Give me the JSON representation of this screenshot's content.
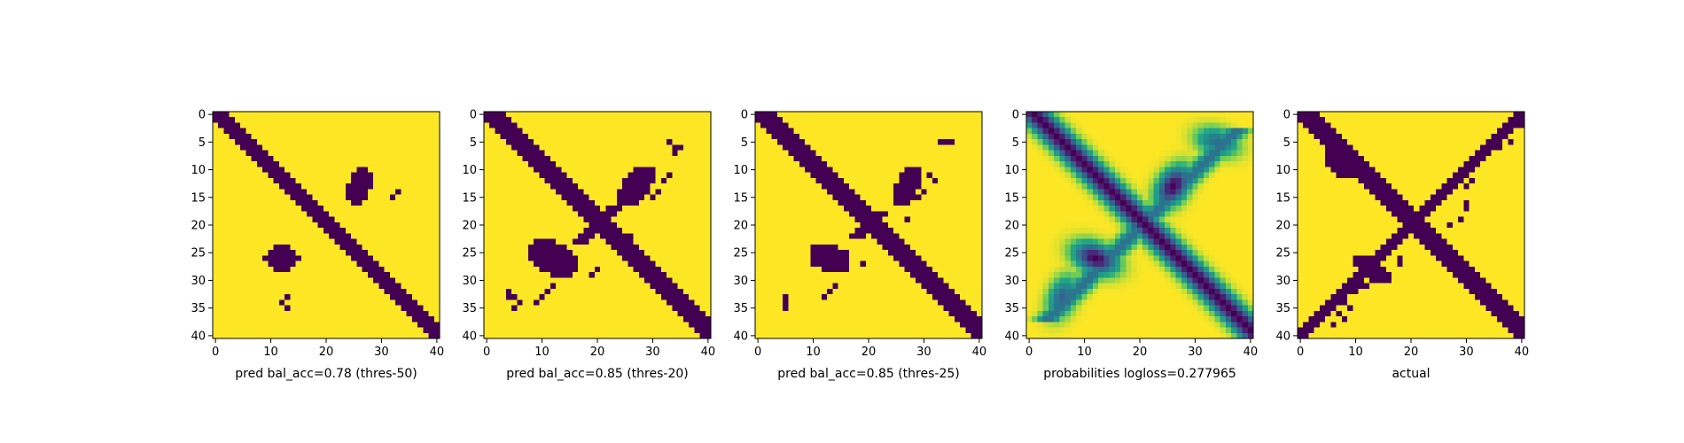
{
  "figure": {
    "background": "#ffffff"
  },
  "colormap": {
    "name": "viridis",
    "low": "#440154",
    "high": "#fde725"
  },
  "chart_data": [
    {
      "type": "heatmap",
      "xlabel": "pred bal_acc=0.78 (thres-50)",
      "size": 41,
      "xticks": [
        0,
        10,
        20,
        30,
        40
      ],
      "yticks": [
        0,
        5,
        10,
        15,
        20,
        25,
        30,
        35,
        40
      ],
      "binary": true,
      "bands": [
        {
          "kind": "diag",
          "width": 4,
          "from": 0,
          "to": 41
        }
      ],
      "blobs": [
        {
          "r": 13,
          "c": 26,
          "rr": 3.5,
          "rc": 2.2,
          "tilt": -0.5
        },
        {
          "r": 26,
          "c": 12,
          "rr": 2.4,
          "rc": 3.0,
          "tilt": 0.0
        }
      ],
      "specks": [
        [
          14,
          33
        ],
        [
          15,
          32
        ],
        [
          33,
          13
        ],
        [
          34,
          12
        ],
        [
          35,
          13
        ]
      ]
    },
    {
      "type": "heatmap",
      "xlabel": "pred bal_acc=0.85 (thres-20)",
      "size": 41,
      "xticks": [
        0,
        10,
        20,
        30,
        40
      ],
      "yticks": [
        0,
        5,
        10,
        15,
        20,
        25,
        30,
        35,
        40
      ],
      "binary": true,
      "bands": [
        {
          "kind": "diag",
          "width": 5,
          "from": 0,
          "to": 41
        },
        {
          "kind": "anti",
          "width": 3,
          "from": 17,
          "to": 24
        }
      ],
      "blobs": [
        {
          "r": 13,
          "c": 27,
          "rr": 4.5,
          "rc": 2.6,
          "tilt": -0.6
        },
        {
          "r": 26,
          "c": 12,
          "rr": 3.0,
          "rc": 5.0,
          "tilt": -0.4
        }
      ],
      "specks": [
        [
          5,
          33
        ],
        [
          6,
          34
        ],
        [
          6,
          35
        ],
        [
          7,
          34
        ],
        [
          11,
          33
        ],
        [
          12,
          32
        ],
        [
          14,
          31
        ],
        [
          15,
          30
        ],
        [
          22,
          26
        ],
        [
          28,
          20
        ],
        [
          29,
          19
        ],
        [
          32,
          4
        ],
        [
          33,
          4
        ],
        [
          33,
          5
        ],
        [
          34,
          6
        ],
        [
          35,
          5
        ],
        [
          31,
          12
        ],
        [
          32,
          11
        ],
        [
          33,
          10
        ],
        [
          34,
          9
        ]
      ]
    },
    {
      "type": "heatmap",
      "xlabel": "pred bal_acc=0.85 (thres-25)",
      "size": 41,
      "xticks": [
        0,
        10,
        20,
        30,
        40
      ],
      "yticks": [
        0,
        5,
        10,
        15,
        20,
        25,
        30,
        35,
        40
      ],
      "binary": true,
      "bands": [
        {
          "kind": "diag",
          "width": 5,
          "from": 0,
          "to": 41
        },
        {
          "kind": "anti",
          "width": 3,
          "from": 18,
          "to": 23
        }
      ],
      "blobs": [
        {
          "r": 13,
          "c": 27,
          "rr": 4.0,
          "rc": 2.2,
          "tilt": -0.6
        },
        {
          "r": 26,
          "c": 13,
          "rr": 2.6,
          "rc": 4.2,
          "tilt": -0.4
        }
      ],
      "specks": [
        [
          5,
          33
        ],
        [
          5,
          34
        ],
        [
          5,
          35
        ],
        [
          11,
          31
        ],
        [
          12,
          32
        ],
        [
          14,
          30
        ],
        [
          15,
          29
        ],
        [
          19,
          27
        ],
        [
          27,
          19
        ],
        [
          31,
          14
        ],
        [
          32,
          13
        ],
        [
          33,
          12
        ],
        [
          33,
          5
        ],
        [
          34,
          5
        ],
        [
          35,
          5
        ]
      ]
    },
    {
      "type": "heatmap",
      "xlabel": "probabilities logloss=0.277965",
      "size": 41,
      "xticks": [
        0,
        10,
        20,
        30,
        40
      ],
      "yticks": [
        0,
        5,
        10,
        15,
        20,
        25,
        30,
        35,
        40
      ],
      "binary": false,
      "bands": [
        {
          "kind": "diag",
          "width": 4,
          "from": 0,
          "to": 41,
          "strength": 1.0
        },
        {
          "kind": "anti",
          "width": 3,
          "from": 3,
          "to": 38,
          "strength": 0.55
        }
      ],
      "blobs": [
        {
          "r": 13,
          "c": 26,
          "rr": 4.0,
          "rc": 2.6,
          "tilt": -0.6,
          "strength": 1.0
        },
        {
          "r": 26,
          "c": 12,
          "rr": 2.6,
          "rc": 4.2,
          "tilt": -0.4,
          "strength": 1.0
        },
        {
          "r": 5,
          "c": 34,
          "rr": 2.5,
          "rc": 4.0,
          "tilt": -0.3,
          "strength": 0.55
        },
        {
          "r": 33,
          "c": 6,
          "rr": 4.0,
          "rc": 2.5,
          "tilt": -0.4,
          "strength": 0.6
        }
      ],
      "specks": []
    },
    {
      "type": "heatmap",
      "xlabel": "actual",
      "size": 41,
      "xticks": [
        0,
        10,
        20,
        30,
        40
      ],
      "yticks": [
        0,
        5,
        10,
        15,
        20,
        25,
        30,
        35,
        40
      ],
      "binary": true,
      "bands": [
        {
          "kind": "diag",
          "width": 5,
          "from": 0,
          "to": 41
        },
        {
          "kind": "anti",
          "width": 3,
          "from": 0,
          "to": 41
        }
      ],
      "blobs": [
        {
          "r": 9,
          "c": 7,
          "rr": 2.0,
          "rc": 3.0,
          "tilt": -0.8
        },
        {
          "r": 28,
          "c": 13,
          "rr": 1.8,
          "rc": 4.0,
          "tilt": -0.5
        }
      ],
      "specks": [
        [
          2,
          40
        ],
        [
          4,
          37
        ],
        [
          5,
          38
        ],
        [
          6,
          35
        ],
        [
          6,
          36
        ],
        [
          12,
          31
        ],
        [
          13,
          30
        ],
        [
          16,
          30
        ],
        [
          17,
          30
        ],
        [
          19,
          29
        ],
        [
          20,
          27
        ],
        [
          26,
          18
        ],
        [
          27,
          18
        ],
        [
          30,
          13
        ],
        [
          31,
          12
        ],
        [
          31,
          11
        ],
        [
          32,
          10
        ],
        [
          35,
          6
        ],
        [
          36,
          7
        ],
        [
          37,
          3
        ],
        [
          38,
          2
        ],
        [
          39,
          1
        ],
        [
          38,
          6
        ],
        [
          37,
          8
        ],
        [
          35,
          9
        ],
        [
          34,
          8
        ]
      ]
    }
  ]
}
